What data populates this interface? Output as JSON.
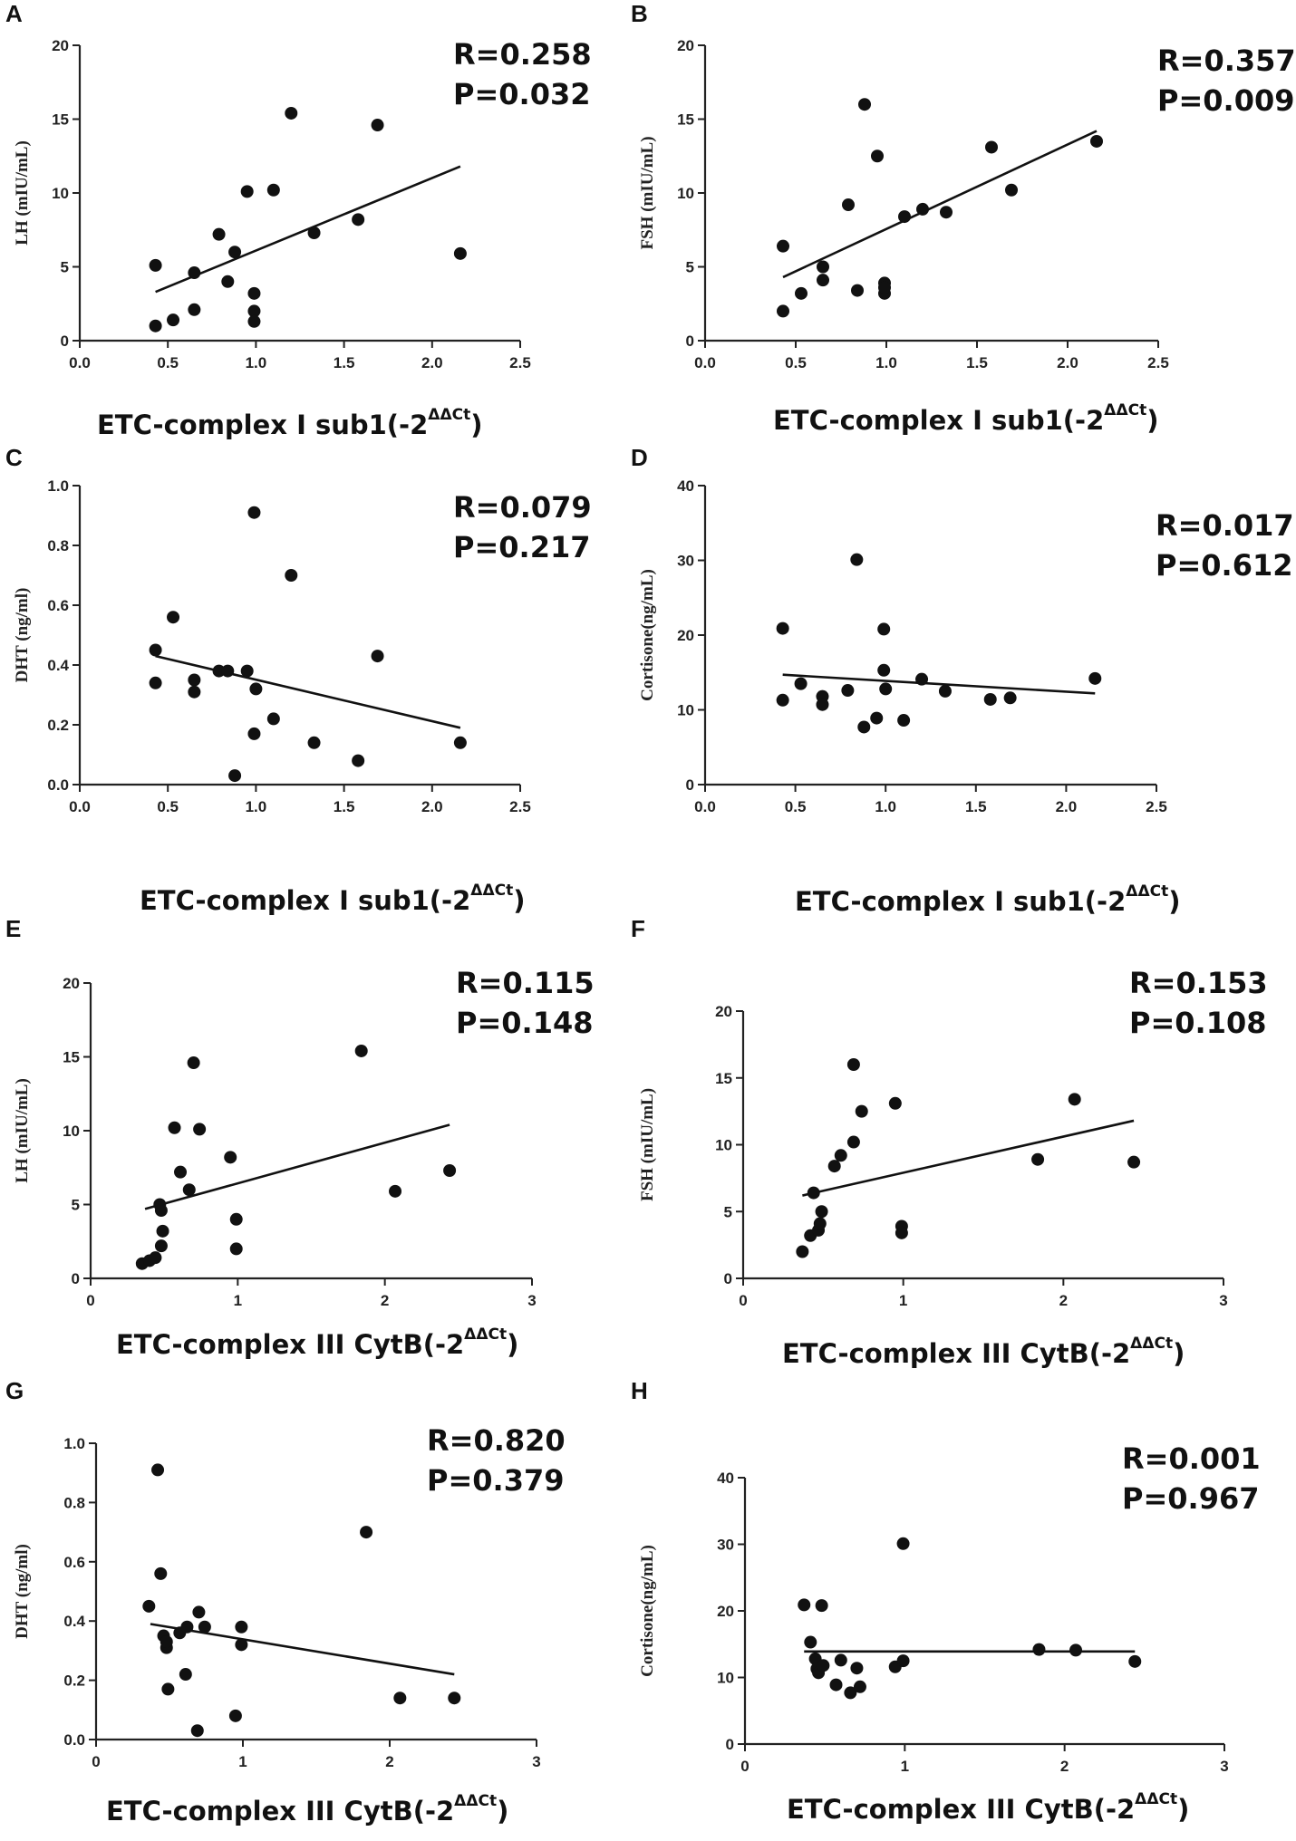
{
  "chart_data": [
    {
      "panel": "A",
      "type": "scatter",
      "ylabel": "LH (mIU/mL)",
      "xlabel": "ETC-complex I sub1(-2",
      "xlabel_sup": "ΔΔCt",
      "xlabel_end": ")",
      "stat_r": "R=0.258",
      "stat_p": "P=0.032",
      "xlim": [
        0,
        2.5
      ],
      "ylim": [
        0,
        20
      ],
      "xticks": [
        "0.0",
        "0.5",
        "1.0",
        "1.5",
        "2.0",
        "2.5"
      ],
      "yticks": [
        "0",
        "5",
        "10",
        "15",
        "20"
      ],
      "points": [
        [
          0.43,
          5.1
        ],
        [
          0.43,
          1.0
        ],
        [
          0.53,
          1.4
        ],
        [
          0.65,
          4.6
        ],
        [
          0.65,
          2.1
        ],
        [
          0.79,
          7.2
        ],
        [
          0.84,
          4.0
        ],
        [
          0.88,
          6.0
        ],
        [
          0.95,
          10.1
        ],
        [
          0.99,
          3.2
        ],
        [
          0.99,
          2.0
        ],
        [
          0.99,
          1.3
        ],
        [
          1.1,
          10.2
        ],
        [
          1.2,
          15.4
        ],
        [
          1.33,
          7.3
        ],
        [
          1.58,
          8.2
        ],
        [
          1.69,
          14.6
        ],
        [
          2.16,
          5.9
        ]
      ],
      "fit": [
        [
          0.43,
          3.3
        ],
        [
          2.16,
          11.8
        ]
      ]
    },
    {
      "panel": "B",
      "type": "scatter",
      "ylabel": "FSH (mIU/mL)",
      "xlabel": "ETC-complex I sub1(-2",
      "xlabel_sup": "ΔΔCt",
      "xlabel_end": ")",
      "stat_r": "R=0.357",
      "stat_p": "P=0.009",
      "xlim": [
        0,
        2.5
      ],
      "ylim": [
        0,
        20
      ],
      "xticks": [
        "0.0",
        "0.5",
        "1.0",
        "1.5",
        "2.0",
        "2.5"
      ],
      "yticks": [
        "0",
        "5",
        "10",
        "15",
        "20"
      ],
      "points": [
        [
          0.43,
          6.4
        ],
        [
          0.43,
          2.0
        ],
        [
          0.53,
          3.2
        ],
        [
          0.65,
          5.0
        ],
        [
          0.65,
          4.1
        ],
        [
          0.79,
          9.2
        ],
        [
          0.84,
          3.4
        ],
        [
          0.88,
          16.0
        ],
        [
          0.95,
          12.5
        ],
        [
          0.99,
          3.9
        ],
        [
          0.99,
          3.2
        ],
        [
          0.99,
          3.6
        ],
        [
          1.1,
          8.4
        ],
        [
          1.2,
          8.9
        ],
        [
          1.33,
          8.7
        ],
        [
          1.58,
          13.1
        ],
        [
          1.69,
          10.2
        ],
        [
          2.16,
          13.5
        ]
      ],
      "fit": [
        [
          0.43,
          4.3
        ],
        [
          2.16,
          14.2
        ]
      ]
    },
    {
      "panel": "C",
      "type": "scatter",
      "ylabel": "DHT (ng/ml)",
      "xlabel": "ETC-complex I sub1(-2",
      "xlabel_sup": "ΔΔCt",
      "xlabel_end": ")",
      "stat_r": "R=0.079",
      "stat_p": "P=0.217",
      "xlim": [
        0,
        2.5
      ],
      "ylim": [
        0,
        1.0
      ],
      "xticks": [
        "0.0",
        "0.5",
        "1.0",
        "1.5",
        "2.0",
        "2.5"
      ],
      "yticks": [
        "0.0",
        "0.2",
        "0.4",
        "0.6",
        "0.8",
        "1.0"
      ],
      "points": [
        [
          0.43,
          0.45
        ],
        [
          0.43,
          0.34
        ],
        [
          0.53,
          0.56
        ],
        [
          0.65,
          0.35
        ],
        [
          0.65,
          0.31
        ],
        [
          0.79,
          0.38
        ],
        [
          0.84,
          0.38
        ],
        [
          0.88,
          0.03
        ],
        [
          0.95,
          0.38
        ],
        [
          0.99,
          0.91
        ],
        [
          0.99,
          0.17
        ],
        [
          1.0,
          0.32
        ],
        [
          1.1,
          0.22
        ],
        [
          1.2,
          0.7
        ],
        [
          1.33,
          0.14
        ],
        [
          1.58,
          0.08
        ],
        [
          1.69,
          0.43
        ],
        [
          2.16,
          0.14
        ]
      ],
      "fit": [
        [
          0.43,
          0.43
        ],
        [
          2.16,
          0.19
        ]
      ]
    },
    {
      "panel": "D",
      "type": "scatter",
      "ylabel": "Cortisone(ng/mL)",
      "xlabel": "ETC-complex I sub1(-2",
      "xlabel_sup": "ΔΔCt",
      "xlabel_end": ")",
      "stat_r": "R=0.017",
      "stat_p": "P=0.612",
      "xlim": [
        0,
        2.5
      ],
      "ylim": [
        0,
        40
      ],
      "xticks": [
        "0.0",
        "0.5",
        "1.0",
        "1.5",
        "2.0",
        "2.5"
      ],
      "yticks": [
        "0",
        "10",
        "20",
        "30",
        "40"
      ],
      "points": [
        [
          0.43,
          20.9
        ],
        [
          0.43,
          11.3
        ],
        [
          0.53,
          13.5
        ],
        [
          0.65,
          11.8
        ],
        [
          0.65,
          10.7
        ],
        [
          0.79,
          12.6
        ],
        [
          0.84,
          30.1
        ],
        [
          0.88,
          7.7
        ],
        [
          0.95,
          8.9
        ],
        [
          0.99,
          20.8
        ],
        [
          0.99,
          15.3
        ],
        [
          1.0,
          12.8
        ],
        [
          1.1,
          8.6
        ],
        [
          1.2,
          14.1
        ],
        [
          1.33,
          12.5
        ],
        [
          1.58,
          11.4
        ],
        [
          1.69,
          11.6
        ],
        [
          2.16,
          14.2
        ]
      ],
      "fit": [
        [
          0.43,
          14.7
        ],
        [
          2.16,
          12.2
        ]
      ]
    },
    {
      "panel": "E",
      "type": "scatter",
      "ylabel": "LH (mIU/mL)",
      "xlabel": "ETC-complex III CytB(-2",
      "xlabel_sup": "ΔΔCt",
      "xlabel_end": ")",
      "stat_r": "R=0.115",
      "stat_p": "P=0.148",
      "xlim": [
        0,
        3
      ],
      "ylim": [
        0,
        20
      ],
      "xticks": [
        "0",
        "1",
        "2",
        "3"
      ],
      "yticks": [
        "0",
        "5",
        "10",
        "15",
        "20"
      ],
      "points": [
        [
          0.35,
          1.0
        ],
        [
          0.4,
          1.2
        ],
        [
          0.44,
          1.4
        ],
        [
          0.47,
          5.0
        ],
        [
          0.48,
          2.2
        ],
        [
          0.48,
          4.6
        ],
        [
          0.49,
          3.2
        ],
        [
          0.57,
          10.2
        ],
        [
          0.61,
          7.2
        ],
        [
          0.67,
          6.0
        ],
        [
          0.7,
          14.6
        ],
        [
          0.74,
          10.1
        ],
        [
          0.95,
          8.2
        ],
        [
          0.99,
          4.0
        ],
        [
          0.99,
          2.0
        ],
        [
          1.84,
          15.4
        ],
        [
          2.07,
          5.9
        ],
        [
          2.44,
          7.3
        ]
      ],
      "fit": [
        [
          0.37,
          4.7
        ],
        [
          2.44,
          10.4
        ]
      ]
    },
    {
      "panel": "F",
      "type": "scatter",
      "ylabel": "FSH (mIU/mL)",
      "xlabel": "ETC-complex III CytB(-2",
      "xlabel_sup": "ΔΔCt",
      "xlabel_end": ")",
      "stat_r": "R=0.153",
      "stat_p": "P=0.108",
      "xlim": [
        0,
        3
      ],
      "ylim": [
        0,
        20
      ],
      "xticks": [
        "0",
        "1",
        "2",
        "3"
      ],
      "yticks": [
        "0",
        "5",
        "10",
        "15",
        "20"
      ],
      "points": [
        [
          0.37,
          2.0
        ],
        [
          0.42,
          3.2
        ],
        [
          0.44,
          6.4
        ],
        [
          0.47,
          3.6
        ],
        [
          0.48,
          4.1
        ],
        [
          0.49,
          5.0
        ],
        [
          0.57,
          8.4
        ],
        [
          0.61,
          9.2
        ],
        [
          0.69,
          10.2
        ],
        [
          0.69,
          16.0
        ],
        [
          0.74,
          12.5
        ],
        [
          0.95,
          13.1
        ],
        [
          0.99,
          3.9
        ],
        [
          0.99,
          3.4
        ],
        [
          1.84,
          8.9
        ],
        [
          2.07,
          13.4
        ],
        [
          2.44,
          8.7
        ]
      ],
      "fit": [
        [
          0.37,
          6.2
        ],
        [
          2.44,
          11.8
        ]
      ]
    },
    {
      "panel": "G",
      "type": "scatter",
      "ylabel": "DHT (ng/ml)",
      "xlabel": "ETC-complex III CytB(-2",
      "xlabel_sup": "ΔΔCt",
      "xlabel_end": ")",
      "stat_r": "R=0.820",
      "stat_p": "P=0.379",
      "xlim": [
        0,
        3
      ],
      "ylim": [
        0,
        1.0
      ],
      "xticks": [
        "0",
        "1",
        "2",
        "3"
      ],
      "yticks": [
        "0.0",
        "0.2",
        "0.4",
        "0.6",
        "0.8",
        "1.0"
      ],
      "points": [
        [
          0.36,
          0.45
        ],
        [
          0.42,
          0.91
        ],
        [
          0.44,
          0.56
        ],
        [
          0.46,
          0.35
        ],
        [
          0.48,
          0.31
        ],
        [
          0.48,
          0.33
        ],
        [
          0.49,
          0.17
        ],
        [
          0.57,
          0.36
        ],
        [
          0.61,
          0.22
        ],
        [
          0.62,
          0.38
        ],
        [
          0.69,
          0.03
        ],
        [
          0.7,
          0.43
        ],
        [
          0.74,
          0.38
        ],
        [
          0.95,
          0.08
        ],
        [
          0.99,
          0.38
        ],
        [
          0.99,
          0.32
        ],
        [
          1.84,
          0.7
        ],
        [
          2.07,
          0.14
        ],
        [
          2.44,
          0.14
        ]
      ],
      "fit": [
        [
          0.37,
          0.39
        ],
        [
          2.44,
          0.22
        ]
      ]
    },
    {
      "panel": "H",
      "type": "scatter",
      "ylabel": "Cortisone(ng/mL)",
      "xlabel": "ETC-complex III CytB(-2",
      "xlabel_sup": "ΔΔCt",
      "xlabel_end": ")",
      "stat_r": "R=0.001",
      "stat_p": "P=0.967",
      "xlim": [
        0,
        3
      ],
      "ylim": [
        0,
        40
      ],
      "xticks": [
        "0",
        "1",
        "2",
        "3"
      ],
      "yticks": [
        "0",
        "10",
        "20",
        "30",
        "40"
      ],
      "points": [
        [
          0.37,
          20.9
        ],
        [
          0.41,
          15.3
        ],
        [
          0.44,
          12.8
        ],
        [
          0.45,
          11.3
        ],
        [
          0.46,
          10.7
        ],
        [
          0.48,
          20.8
        ],
        [
          0.49,
          11.8
        ],
        [
          0.57,
          8.9
        ],
        [
          0.6,
          12.6
        ],
        [
          0.66,
          7.7
        ],
        [
          0.7,
          11.4
        ],
        [
          0.72,
          8.6
        ],
        [
          0.94,
          11.6
        ],
        [
          0.99,
          12.5
        ],
        [
          0.99,
          30.1
        ],
        [
          1.84,
          14.2
        ],
        [
          2.07,
          14.1
        ],
        [
          2.44,
          12.4
        ]
      ],
      "fit": [
        [
          0.37,
          13.9
        ],
        [
          2.44,
          13.9
        ]
      ]
    }
  ]
}
